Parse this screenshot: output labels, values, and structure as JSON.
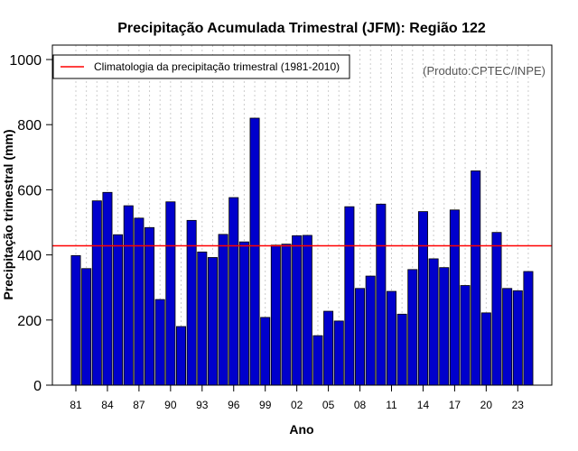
{
  "chart_data": {
    "type": "bar",
    "title": "Precipitação Acumulada Trimestral (JFM): Região 122",
    "xlabel": "Ano",
    "ylabel": "Precipitação trimestral (mm)",
    "ylim": [
      0,
      1000
    ],
    "yticks": [
      "0",
      "200",
      "400",
      "600",
      "800",
      "1000"
    ],
    "grid": "vertical dotted",
    "categories": [
      "1981",
      "1982",
      "1983",
      "1984",
      "1985",
      "1986",
      "1987",
      "1988",
      "1989",
      "1990",
      "1991",
      "1992",
      "1993",
      "1994",
      "1995",
      "1996",
      "1997",
      "1998",
      "1999",
      "2000",
      "2001",
      "2002",
      "2003",
      "2004",
      "2005",
      "2006",
      "2007",
      "2008",
      "2009",
      "2010",
      "2011",
      "2012",
      "2013",
      "2014",
      "2015",
      "2016",
      "2017",
      "2018",
      "2019",
      "2020",
      "2021",
      "2022",
      "2023",
      "2024"
    ],
    "xtick_labels": [
      {
        "index": 0,
        "label": "81"
      },
      {
        "index": 3,
        "label": "84"
      },
      {
        "index": 6,
        "label": "87"
      },
      {
        "index": 9,
        "label": "90"
      },
      {
        "index": 12,
        "label": "93"
      },
      {
        "index": 15,
        "label": "96"
      },
      {
        "index": 18,
        "label": "99"
      },
      {
        "index": 21,
        "label": "02"
      },
      {
        "index": 24,
        "label": "05"
      },
      {
        "index": 27,
        "label": "08"
      },
      {
        "index": 30,
        "label": "11"
      },
      {
        "index": 33,
        "label": "14"
      },
      {
        "index": 36,
        "label": "17"
      },
      {
        "index": 39,
        "label": "20"
      },
      {
        "index": 42,
        "label": "23"
      }
    ],
    "values": [
      398,
      358,
      566,
      592,
      462,
      551,
      513,
      484,
      263,
      563,
      180,
      506,
      409,
      392,
      463,
      576,
      440,
      820,
      208,
      430,
      433,
      459,
      460,
      152,
      227,
      197,
      548,
      297,
      335,
      556,
      288,
      218,
      355,
      533,
      388,
      361,
      538,
      306,
      658,
      222,
      469,
      297,
      290,
      349
    ],
    "climatology": {
      "value": 428,
      "label": "Climatologia da precipitação trimestral (1981-2010)",
      "color": "#ff0000"
    },
    "legend_position": "top-left",
    "source_note": "(Produto:CPTEC/INPE)",
    "colors": {
      "bar_fill": "#0000cc",
      "bar_edge": "#000000",
      "grid": "#cccccc",
      "frame": "#000000"
    }
  }
}
